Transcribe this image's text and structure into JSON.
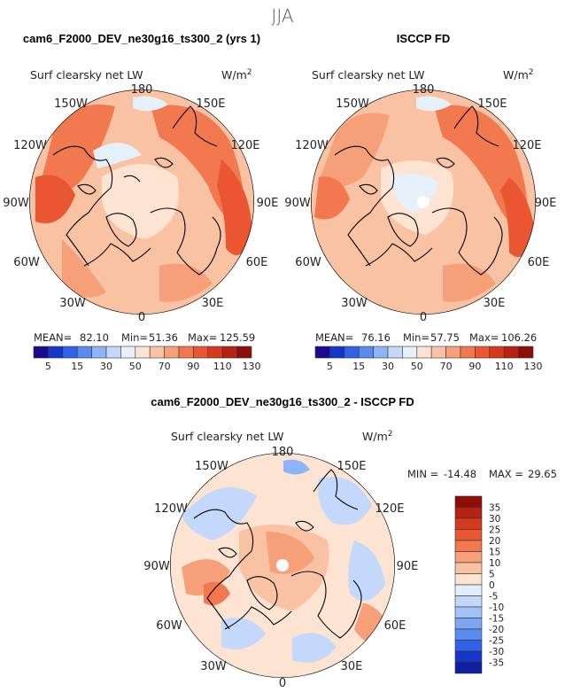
{
  "season": "JJA",
  "colors": {
    "ocean_lo": "#f9d4bd",
    "coast": "#000000",
    "circle": "#000000"
  },
  "chart_data": [
    {
      "type": "heatmap",
      "projection": "polar-stereographic (north pole)",
      "title": "cam6_F2000_DEV_ne30g16_ts300_2 (yrs 1)",
      "field_label": "Surf clearsky net LW",
      "units_base": "W/m",
      "units_exp": "2",
      "lon_labels": [
        "180",
        "150E",
        "120E",
        "90E",
        "60E",
        "30E",
        "0",
        "30W",
        "60W",
        "90W",
        "120W",
        "150W"
      ],
      "stats": {
        "mean_label": "MEAN=",
        "mean": "82.10",
        "min_label": "Min=",
        "min": "51.36",
        "max_label": "Max=",
        "max": "125.59"
      },
      "levels": [
        "5",
        "15",
        "30",
        "50",
        "70",
        "90",
        "110",
        "130"
      ],
      "colorbar": [
        "#1a0a8c",
        "#1537c9",
        "#2f62e6",
        "#5a8cf0",
        "#8fb4f6",
        "#c3d8fb",
        "#e6f0fb",
        "#fde4d2",
        "#f9c3a3",
        "#f6a07a",
        "#f2784f",
        "#ea5532",
        "#d63a1c",
        "#b52212",
        "#8c0d08"
      ]
    },
    {
      "type": "heatmap",
      "projection": "polar-stereographic (north pole)",
      "title": "ISCCP FD",
      "field_label": "Surf clearsky net LW",
      "units_base": "W/m",
      "units_exp": "2",
      "lon_labels": [
        "180",
        "150E",
        "120E",
        "90E",
        "60E",
        "30E",
        "0",
        "30W",
        "60W",
        "90W",
        "120W",
        "150W"
      ],
      "stats": {
        "mean_label": "MEAN=",
        "mean": "76.16",
        "min_label": "Min=",
        "min": "57.75",
        "max_label": "Max=",
        "max": "106.26"
      },
      "levels": [
        "5",
        "15",
        "30",
        "50",
        "70",
        "90",
        "110",
        "130"
      ],
      "colorbar": [
        "#1a0a8c",
        "#1537c9",
        "#2f62e6",
        "#5a8cf0",
        "#8fb4f6",
        "#c3d8fb",
        "#e6f0fb",
        "#fde4d2",
        "#f9c3a3",
        "#f6a07a",
        "#f2784f",
        "#ea5532",
        "#d63a1c",
        "#b52212",
        "#8c0d08"
      ]
    },
    {
      "type": "heatmap",
      "projection": "polar-stereographic (north pole)",
      "title": "cam6_F2000_DEV_ne30g16_ts300_2 - ISCCP FD",
      "field_label": "Surf clearsky net LW",
      "units_base": "W/m",
      "units_exp": "2",
      "lon_labels": [
        "180",
        "150E",
        "120E",
        "90E",
        "60E",
        "30E",
        "0",
        "30W",
        "60W",
        "90W",
        "120W",
        "150W"
      ],
      "stats": {
        "min_label": "MIN =",
        "min": "-14.48",
        "max_label": "MAX =",
        "max": "29.65"
      },
      "levels": [
        "35",
        "30",
        "25",
        "20",
        "15",
        "10",
        "5",
        "0",
        "-5",
        "-10",
        "-15",
        "-20",
        "-25",
        "-30",
        "-35"
      ],
      "colorbar": [
        "#8c0d08",
        "#b52212",
        "#d63a1c",
        "#ea5532",
        "#f2784f",
        "#f6a07a",
        "#f9c3a3",
        "#fde4d2",
        "#e3eefb",
        "#c3d8fb",
        "#a3c2f8",
        "#7ea6f2",
        "#5a8cf0",
        "#2f62e6",
        "#1537c9",
        "#0f1f9e"
      ]
    }
  ]
}
